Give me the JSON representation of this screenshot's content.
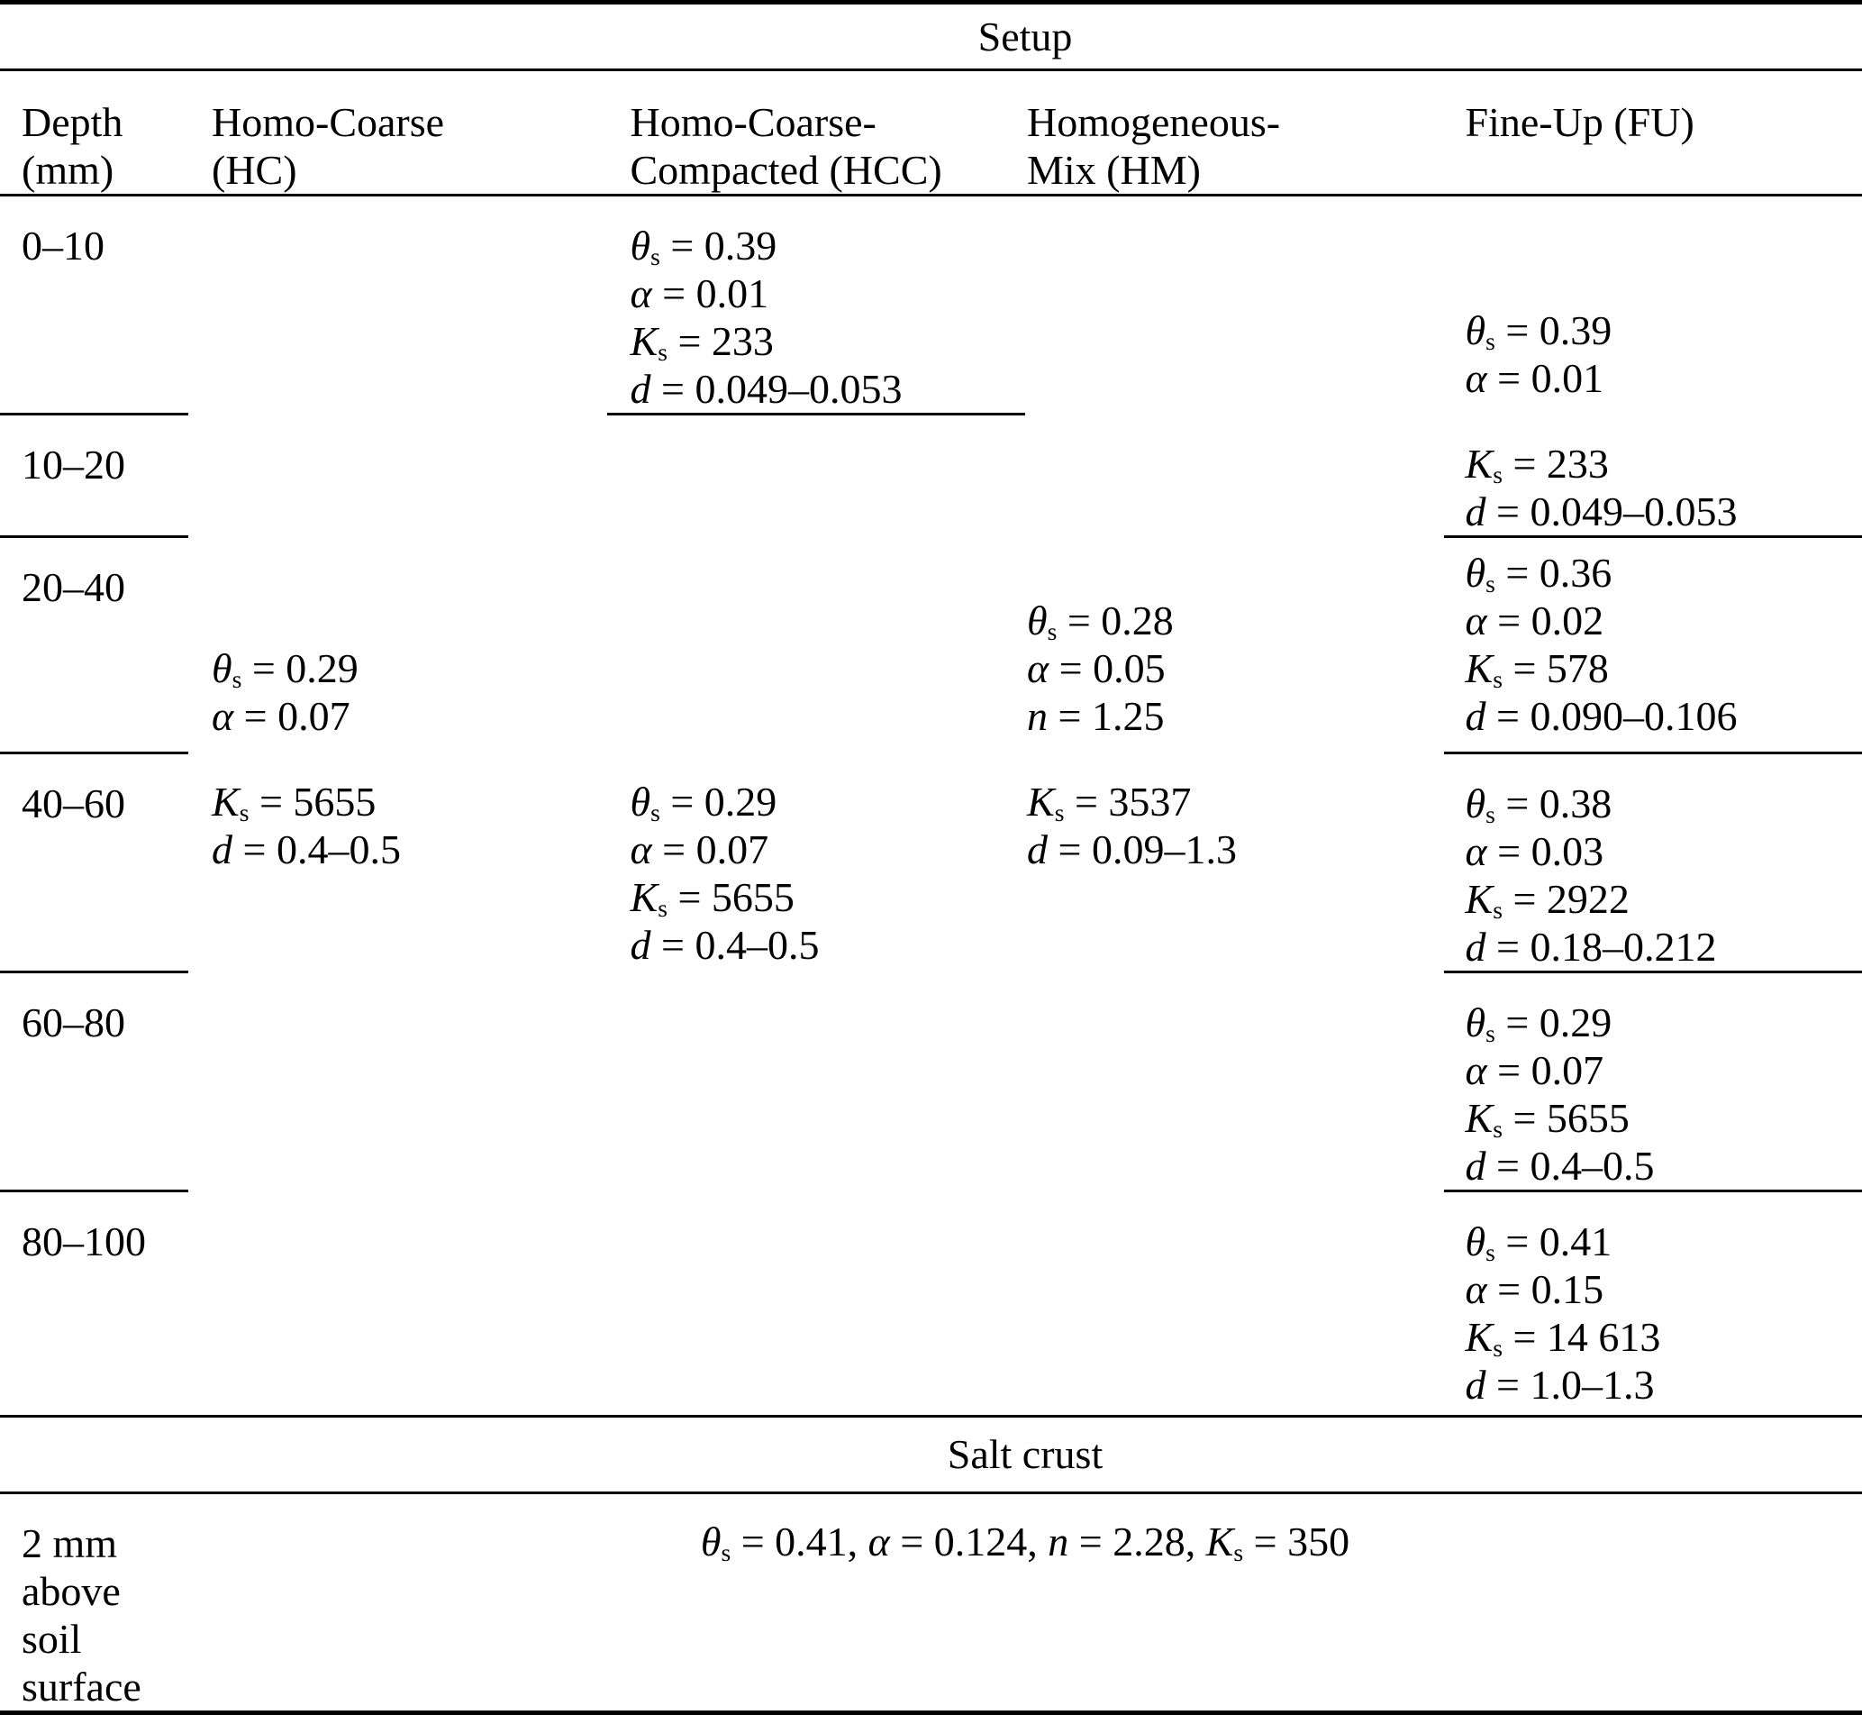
{
  "table": {
    "title": "Setup",
    "columns": [
      {
        "id": "depth",
        "label": "Depth\n(mm)"
      },
      {
        "id": "hc",
        "label": "Homo-Coarse\n(HC)"
      },
      {
        "id": "hcc",
        "label": "Homo-Coarse-\nCompacted (HCC)"
      },
      {
        "id": "hm",
        "label": "Homogeneous-\nMix (HM)"
      },
      {
        "id": "fu",
        "label": "Fine-Up (FU)"
      }
    ],
    "rows": [
      {
        "depth": "0–10",
        "depth_cline": true,
        "hc": null,
        "hcc": {
          "lines": [
            "*θ*~s~ = 0.39",
            "*α* = 0.01",
            "*K*~s~ = 233",
            "*d* = 0.049–0.053"
          ],
          "valign": "top",
          "cline": true
        },
        "hm": null,
        "fu": {
          "lines": [
            "*θ*~s~ = 0.39",
            "*α* = 0.01"
          ],
          "valign": "bottom",
          "cline": false
        }
      },
      {
        "depth": "10–20",
        "depth_cline": true,
        "hc": null,
        "hcc": null,
        "hm": null,
        "fu": {
          "lines": [
            "*K*~s~ = 233",
            "*d* = 0.049–0.053"
          ],
          "valign": "top",
          "cline": true
        }
      },
      {
        "depth": "20–40",
        "depth_cline": true,
        "hc": {
          "lines": [
            "*θ*~s~ = 0.29",
            "*α* = 0.07"
          ],
          "valign": "bottom",
          "cline": false
        },
        "hcc": null,
        "hm": {
          "lines": [
            "*θ*~s~ = 0.28",
            "*α* = 0.05",
            "*n* = 1.25"
          ],
          "valign": "bottom",
          "cline": false
        },
        "fu": {
          "lines": [
            "*θ*~s~ = 0.36",
            "*α* = 0.02",
            "*K*~s~ = 578",
            "*d* = 0.090–0.106"
          ],
          "valign": "middle",
          "cline": true
        }
      },
      {
        "depth": "40–60",
        "depth_cline": true,
        "hc": {
          "lines": [
            "*K*~s~ = 5655",
            "*d* = 0.4–0.5"
          ],
          "valign": "top",
          "cline": false
        },
        "hcc": {
          "lines": [
            "*θ*~s~ = 0.29",
            "*α* = 0.07",
            "*K*~s~ = 5655",
            "*d* = 0.4–0.5"
          ],
          "valign": "top",
          "cline": false
        },
        "hm": {
          "lines": [
            "*K*~s~ = 3537",
            "*d* = 0.09–1.3"
          ],
          "valign": "top",
          "cline": false
        },
        "fu": {
          "lines": [
            "*θ*~s~ = 0.38",
            "*α* = 0.03",
            "*K*~s~ = 2922",
            "*d* = 0.18–0.212"
          ],
          "valign": "top",
          "cline": true
        }
      },
      {
        "depth": "60–80",
        "depth_cline": true,
        "hc": null,
        "hcc": null,
        "hm": null,
        "fu": {
          "lines": [
            "*θ*~s~ = 0.29",
            "*α* = 0.07",
            "*K*~s~ = 5655",
            "*d* = 0.4–0.5"
          ],
          "valign": "top",
          "cline": true
        }
      },
      {
        "depth": "80–100",
        "depth_cline": false,
        "hc": null,
        "hcc": null,
        "hm": null,
        "fu": {
          "lines": [
            "*θ*~s~ = 0.41",
            "*α* = 0.15",
            "*K*~s~ = 14 613",
            "*d* = 1.0–1.3"
          ],
          "valign": "top",
          "cline": false
        }
      }
    ],
    "salt_crust": {
      "label": "Salt crust",
      "depth_lines": [
        "2 mm",
        "above",
        "soil",
        "surface"
      ],
      "value": "*θ*~s~ = 0.41, *α* = 0.124, *n* = 2.28, *K*~s~ = 350"
    }
  }
}
